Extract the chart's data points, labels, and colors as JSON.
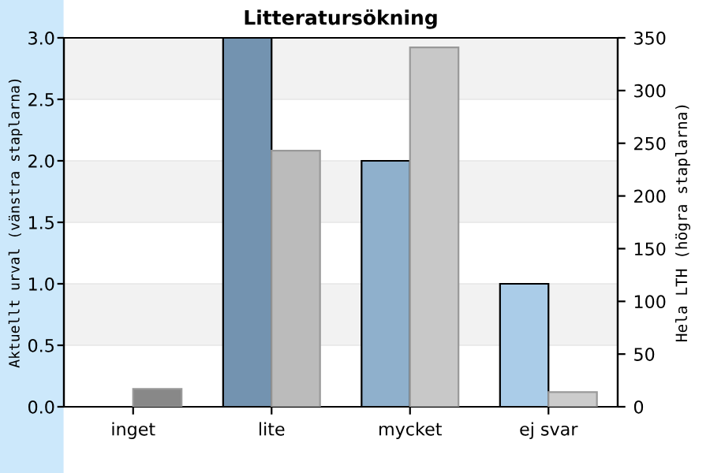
{
  "chart_data": {
    "type": "bar",
    "title": "Litteratursökning",
    "ylabel": "Aktuellt urval (vänstra staplarna)",
    "y2label": "Hela LTH (högra staplarna)",
    "categories": [
      "inget",
      "lite",
      "mycket",
      "ej svar"
    ],
    "series": [
      {
        "colors": [
          "#6e8fae",
          "#7393b0",
          "#8fb0cc",
          "#aacce8"
        ],
        "values": [
          0,
          3.0,
          2.0,
          1.0
        ]
      },
      {
        "axis": "y2",
        "colors": [
          "#888888",
          "#bbbbbb",
          "#c8c8c8",
          "#cccccc"
        ],
        "values": [
          17,
          243,
          341,
          14
        ]
      }
    ],
    "ylim": [
      0,
      3
    ],
    "yticks": [
      {
        "value": 0,
        "label": "0.0"
      },
      {
        "value": 0.5,
        "label": "0.5"
      },
      {
        "value": 1,
        "label": "1.0"
      },
      {
        "value": 1.5,
        "label": "1.5"
      },
      {
        "value": 2,
        "label": "2.0"
      },
      {
        "value": 2.5,
        "label": "2.5"
      },
      {
        "value": 3,
        "label": "3.0"
      }
    ],
    "y2lim": [
      0,
      350
    ],
    "y2ticks": [
      0,
      50,
      100,
      150,
      200,
      250,
      300,
      350
    ],
    "grid": "y",
    "legend": false
  }
}
